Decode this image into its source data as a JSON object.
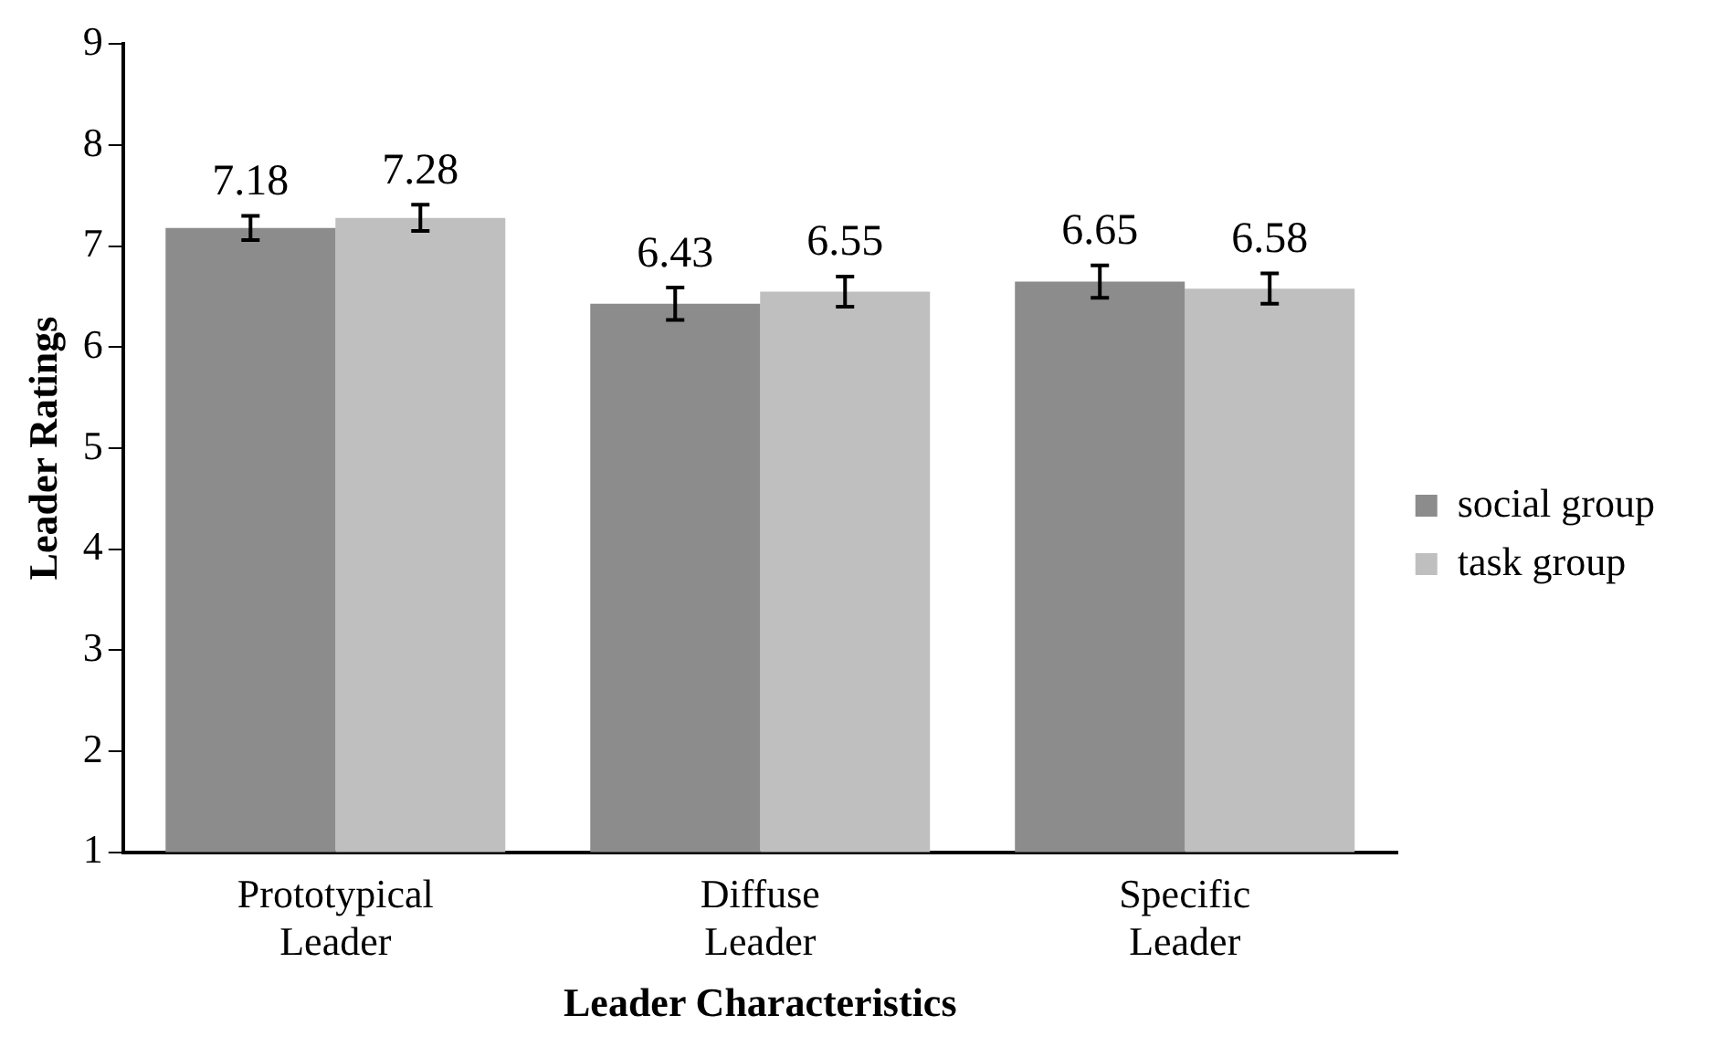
{
  "chart_data": {
    "type": "bar",
    "xlabel": "Leader Characteristics",
    "ylabel": "Leader Ratings",
    "categories": [
      "Prototypical Leader",
      "Diffuse Leader",
      "Specific Leader"
    ],
    "series": [
      {
        "name": "social group",
        "color": "#8c8c8c",
        "values": [
          7.18,
          6.43,
          6.65
        ],
        "errors": [
          0.12,
          0.16,
          0.16
        ]
      },
      {
        "name": "task group",
        "color": "#bfbfbf",
        "values": [
          7.28,
          6.55,
          6.58
        ],
        "errors": [
          0.13,
          0.15,
          0.15
        ]
      }
    ],
    "ylim": [
      1,
      9
    ],
    "yticks": [
      1,
      2,
      3,
      4,
      5,
      6,
      7,
      8,
      9
    ],
    "grid": false,
    "legend": "right",
    "data_labels": true
  }
}
